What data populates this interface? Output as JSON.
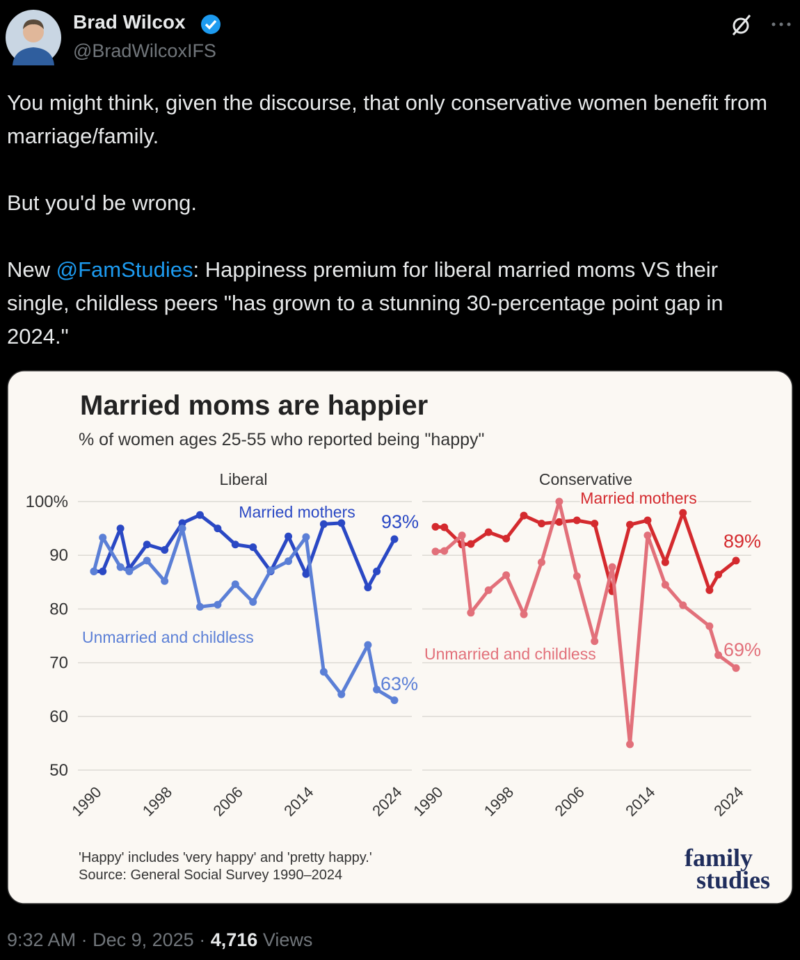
{
  "author": {
    "name": "Brad Wilcox",
    "handle": "@BradWilcoxIFS"
  },
  "tweet": {
    "paragraphs": [
      [
        "You might think, given the discourse, that only conservative women benefit from marriage/family."
      ],
      [
        "But you'd be wrong."
      ],
      [
        "New ",
        "@FamStudies",
        ": Happiness premium for liberal married moms VS their single, childless peers \"has grown to a stunning 30-percentage point gap in 2024.\""
      ]
    ]
  },
  "image": {
    "title": "Married moms are happier",
    "subtitle": "% of women ages 25-55 who reported being \"happy\"",
    "notes": [
      "'Happy' includes 'very happy' and 'pretty happy.'",
      "Source: General Social Survey 1990–2024"
    ],
    "logo": [
      "family",
      "studies"
    ]
  },
  "chart_data": [
    {
      "type": "line",
      "title": "Liberal",
      "x": [
        1990,
        1991,
        1993,
        1994,
        1996,
        1998,
        2000,
        2002,
        2004,
        2006,
        2008,
        2010,
        2012,
        2014,
        2016,
        2018,
        2021,
        2022,
        2024
      ],
      "xlim": [
        1990,
        2024
      ],
      "xticks": [
        1990,
        1998,
        2006,
        2014,
        2024
      ],
      "ylim": [
        50,
        100
      ],
      "yticks": [
        50,
        60,
        70,
        80,
        90,
        {
          "value": 100,
          "label": "100%"
        }
      ],
      "grid": true,
      "series": [
        {
          "name": "Married mothers",
          "color": "#2a48c4",
          "values": [
            87,
            87,
            95,
            87.5,
            92,
            91,
            96,
            97.5,
            95,
            92,
            91.5,
            87,
            93.5,
            86.5,
            95.8,
            96,
            84,
            87,
            93
          ],
          "value_labels": [
            null,
            null,
            null,
            null,
            null,
            null,
            null,
            null,
            null,
            null,
            null,
            null,
            null,
            null,
            null,
            null,
            null,
            null,
            "93%"
          ]
        },
        {
          "name": "Unmarried and childless",
          "color": "#5b7fd6",
          "values": [
            87,
            93.3,
            87.8,
            87,
            89,
            85.2,
            95,
            80.4,
            80.8,
            84.6,
            81.3,
            87.2,
            88.9,
            93.4,
            68.3,
            64.1,
            73.3,
            65,
            63
          ],
          "value_labels": [
            null,
            null,
            null,
            null,
            null,
            null,
            null,
            null,
            null,
            null,
            null,
            null,
            null,
            null,
            null,
            null,
            null,
            null,
            "63%"
          ]
        }
      ]
    },
    {
      "type": "line",
      "title": "Conservative",
      "x": [
        1990,
        1991,
        1993,
        1994,
        1996,
        1998,
        2000,
        2002,
        2004,
        2006,
        2008,
        2010,
        2012,
        2014,
        2016,
        2018,
        2021,
        2022,
        2024
      ],
      "xlim": [
        1990,
        2024
      ],
      "xticks": [
        1990,
        1998,
        2006,
        2014,
        2024
      ],
      "ylim": [
        50,
        100
      ],
      "grid": true,
      "series": [
        {
          "name": "Married mothers",
          "color": "#d42a2e",
          "values": [
            95.3,
            95.2,
            92,
            92.1,
            94.3,
            93.1,
            97.4,
            95.9,
            96.2,
            96.5,
            95.9,
            83.3,
            95.7,
            96.5,
            88.7,
            97.9,
            83.5,
            86.4,
            89
          ],
          "value_labels": [
            null,
            null,
            null,
            null,
            null,
            null,
            null,
            null,
            null,
            null,
            null,
            null,
            null,
            null,
            null,
            null,
            null,
            null,
            "89%"
          ]
        },
        {
          "name": "Unmarried and childless",
          "color": "#e2707a",
          "values": [
            90.7,
            90.8,
            93.7,
            79.3,
            83.5,
            86.3,
            79,
            88.7,
            100,
            86.1,
            74,
            87.8,
            54.8,
            93.7,
            84.5,
            80.7,
            76.8,
            71.4,
            69
          ],
          "value_labels": [
            null,
            null,
            null,
            null,
            null,
            null,
            null,
            null,
            null,
            null,
            null,
            null,
            null,
            null,
            null,
            null,
            null,
            null,
            "69%"
          ]
        }
      ]
    }
  ],
  "footer": {
    "time": "9:32 AM",
    "separator": "·",
    "date": "Dec 9, 2025",
    "views_count": "4,716",
    "views_label": "Views"
  }
}
